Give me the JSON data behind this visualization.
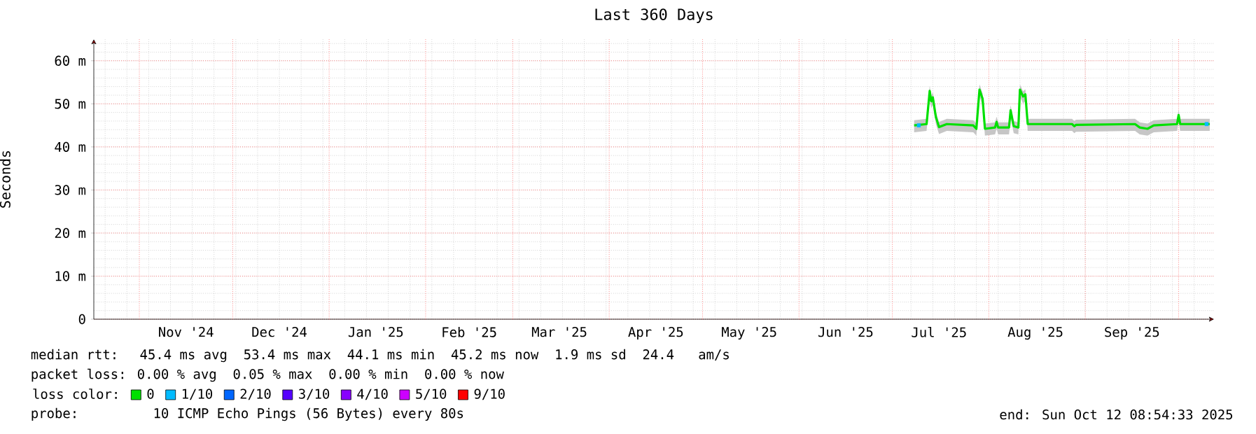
{
  "chart_data": {
    "type": "line",
    "title": "Last 360 Days",
    "ylabel": "Seconds",
    "legend_title": "loss color:",
    "legend": "bottom",
    "grid": true,
    "xlim": [
      "2024-10-17T08:54",
      "2025-10-12T08:54"
    ],
    "xticks": [
      {
        "value": "2024-11-01",
        "label": null
      },
      {
        "value": "2024-11-16",
        "label": "Nov '24"
      },
      {
        "value": "2024-12-01",
        "label": null
      },
      {
        "value": "2024-12-16",
        "label": "Dec '24"
      },
      {
        "value": "2025-01-01",
        "label": null
      },
      {
        "value": "2025-01-16",
        "label": "Jan '25"
      },
      {
        "value": "2025-02-01",
        "label": null
      },
      {
        "value": "2025-02-15",
        "label": "Feb '25"
      },
      {
        "value": "2025-03-01",
        "label": null
      },
      {
        "value": "2025-03-16",
        "label": "Mar '25"
      },
      {
        "value": "2025-04-01",
        "label": null
      },
      {
        "value": "2025-04-16",
        "label": "Apr '25"
      },
      {
        "value": "2025-05-01",
        "label": null
      },
      {
        "value": "2025-05-16",
        "label": "May '25"
      },
      {
        "value": "2025-06-01",
        "label": null
      },
      {
        "value": "2025-06-16",
        "label": "Jun '25"
      },
      {
        "value": "2025-07-01",
        "label": null
      },
      {
        "value": "2025-07-16",
        "label": "Jul '25"
      },
      {
        "value": "2025-08-01",
        "label": null
      },
      {
        "value": "2025-08-16",
        "label": "Aug '25"
      },
      {
        "value": "2025-09-01",
        "label": null
      },
      {
        "value": "2025-09-16",
        "label": "Sep '25"
      },
      {
        "value": "2025-10-01",
        "label": null
      }
    ],
    "ylim": [
      0,
      65
    ],
    "yticks": [
      0,
      {
        "value": 10,
        "label": "10 m"
      },
      {
        "value": 20,
        "label": "20 m"
      },
      {
        "value": 30,
        "label": "30 m"
      },
      {
        "value": 40,
        "label": "40 m"
      },
      {
        "value": 50,
        "label": "50 m"
      },
      {
        "value": 60,
        "label": "60 m"
      }
    ],
    "series": [
      {
        "name": "0",
        "color": "#00e000",
        "x": [
          "2025-07-08",
          "2025-07-12",
          "2025-07-13",
          "2025-07-13T12:00",
          "2025-07-14",
          "2025-07-15",
          "2025-07-16",
          "2025-07-18T12:00",
          "2025-07-27",
          "2025-07-28",
          "2025-07-29",
          "2025-07-30",
          "2025-07-30T18:00",
          "2025-08-03",
          "2025-08-03T12:00",
          "2025-08-04",
          "2025-08-07T12:00",
          "2025-08-08",
          "2025-08-09",
          "2025-08-10T12:00",
          "2025-08-11",
          "2025-08-12",
          "2025-08-12T18:00",
          "2025-08-13T12:00",
          "2025-08-27T18:00",
          "2025-08-28T12:00",
          "2025-08-29",
          "2025-09-17",
          "2025-09-18T12:00",
          "2025-09-21",
          "2025-09-23",
          "2025-09-30T12:00",
          "2025-10-01",
          "2025-10-01T12:00",
          "2025-10-11"
        ],
        "values": [
          45.0,
          45.3,
          53.0,
          50.6,
          51.5,
          46.9,
          44.6,
          45.3,
          45.0,
          44.2,
          53.3,
          51.2,
          44.2,
          44.5,
          45.8,
          44.5,
          44.5,
          48.5,
          44.8,
          44.5,
          53.3,
          51.7,
          52.2,
          45.3,
          45.3,
          44.8,
          45.1,
          45.3,
          44.5,
          44.2,
          45.0,
          45.3,
          47.4,
          45.3,
          45.3
        ],
        "lower": [
          43.4,
          43.7,
          51.4,
          49.0,
          49.9,
          45.3,
          43.0,
          43.7,
          43.4,
          42.6,
          51.7,
          49.6,
          42.6,
          42.9,
          44.2,
          42.9,
          42.9,
          46.9,
          43.2,
          42.9,
          51.7,
          50.1,
          50.6,
          43.7,
          43.7,
          43.2,
          43.5,
          43.7,
          42.9,
          42.6,
          43.4,
          43.7,
          45.8,
          43.7,
          43.7
        ],
        "upper": [
          46.2,
          46.5,
          54.2,
          51.8,
          52.7,
          48.1,
          45.8,
          46.5,
          46.2,
          45.4,
          54.5,
          52.4,
          45.4,
          45.7,
          47.0,
          45.7,
          45.7,
          49.7,
          46.0,
          45.7,
          54.5,
          52.9,
          53.4,
          46.5,
          46.5,
          46.0,
          46.3,
          46.5,
          45.7,
          45.4,
          46.2,
          46.5,
          48.6,
          46.5,
          46.5
        ]
      },
      {
        "name": "1/10",
        "color": "#00bbff",
        "type": "scatter",
        "x": [
          "2025-07-09T12:00",
          "2025-10-10"
        ],
        "values": [
          45.0,
          45.3
        ]
      },
      {
        "name": "2/10",
        "color": "#0066ff"
      },
      {
        "name": "3/10",
        "color": "#5500ff"
      },
      {
        "name": "4/10",
        "color": "#8800ff"
      },
      {
        "name": "5/10",
        "color": "#cc00ff"
      },
      {
        "name": "9/10",
        "color": "#ff0000"
      }
    ],
    "annotations": [
      "median rtt:  45.4 ms avg  53.4 ms max  44.1 ms min  45.2 ms now  1.9 ms sd  24.4   am/s",
      "packet loss: 0.00 % avg  0.05 % max  0.00 % min  0.00 % now",
      "probe:       10 ICMP Echo Pings (56 Bytes) every 80s",
      "end: Sun Oct 12 08:54:33 2025"
    ]
  }
}
